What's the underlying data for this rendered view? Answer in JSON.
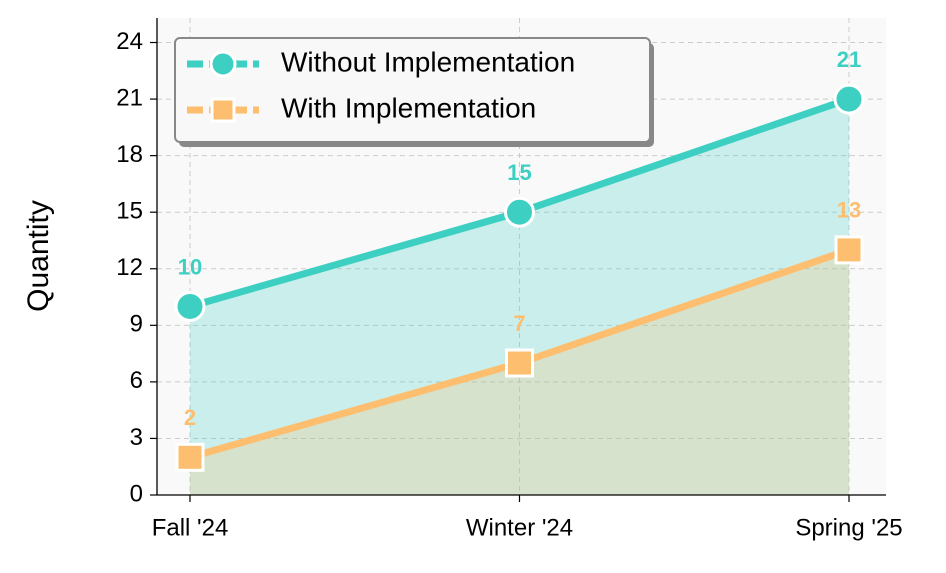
{
  "chart_data": {
    "type": "line",
    "categories": [
      "Fall '24",
      "Winter '24",
      "Spring '25"
    ],
    "series": [
      {
        "name": "Without Implementation",
        "color": "#3ecfc3",
        "marker": "circle",
        "values": [
          10,
          15,
          21
        ]
      },
      {
        "name": "With Implementation",
        "color": "#fdbf6f",
        "marker": "square",
        "values": [
          2,
          7,
          13
        ]
      }
    ],
    "y_label": "Quantity",
    "ylim": [
      0,
      25.3
    ],
    "yticks": [
      0,
      3,
      6,
      9,
      12,
      15,
      18,
      21,
      24
    ],
    "grid": true,
    "legend": "upper-left",
    "fill_area": true,
    "data_labels": true
  }
}
